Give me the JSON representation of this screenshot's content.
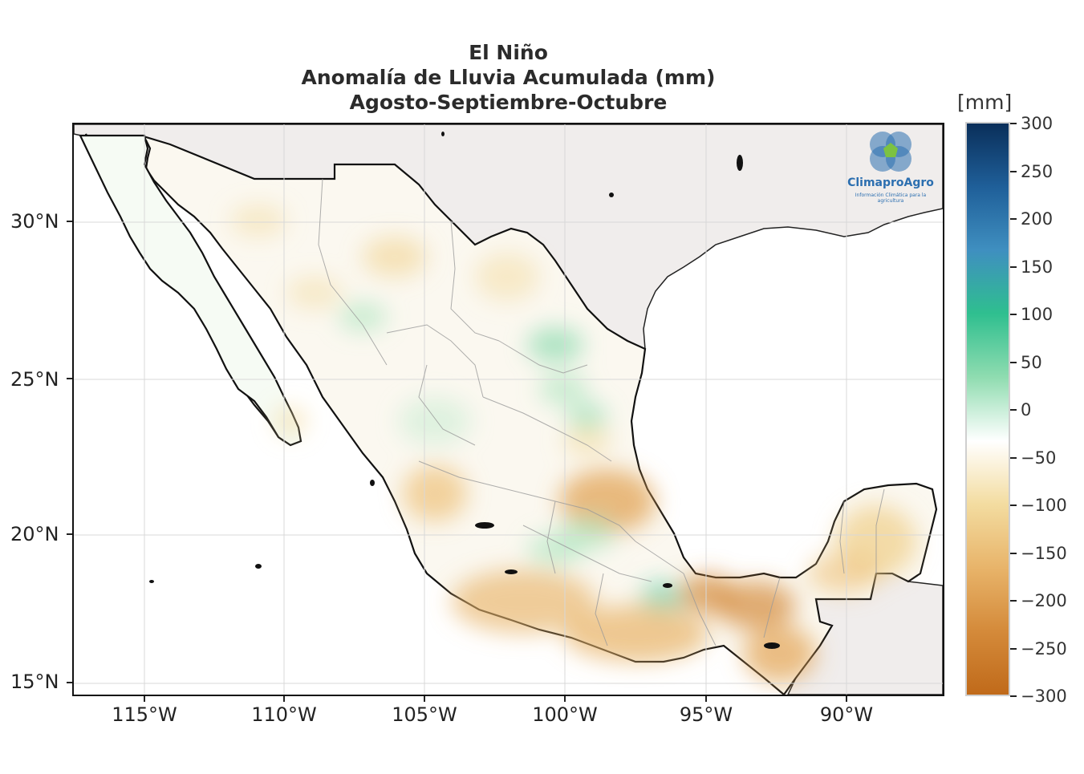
{
  "title": {
    "line1": "El Niño",
    "line2": "Anomalía de Lluvia Acumulada (mm)",
    "line3": "Agosto-Septiembre-Octubre"
  },
  "axes": {
    "lat_labels": [
      "30°N",
      "25°N",
      "20°N",
      "15°N"
    ],
    "lon_labels": [
      "115°W",
      "110°W",
      "105°W",
      "100°W",
      "95°W",
      "90°W"
    ]
  },
  "colorbar": {
    "unit": "[mm]",
    "labels": [
      "300",
      "250",
      "200",
      "150",
      "100",
      "50",
      "0",
      "−50",
      "−100",
      "−150",
      "−200",
      "−250",
      "−300"
    ],
    "range": [
      -300,
      300
    ],
    "colors_top_to_bottom": [
      "#0a2f5a",
      "#1f5f99",
      "#3f8fc0",
      "#2fbf8f",
      "#8fdcb0",
      "#ffffff",
      "#f3dca0",
      "#e8b46a",
      "#d48a3a",
      "#c06a1a"
    ]
  },
  "logo": {
    "name": "ClimaproAgro",
    "tagline": "Información Climática para la agricultura"
  },
  "colors": {
    "land_outside": "#f0edec",
    "ocean": "#ffffff",
    "border": "#111111"
  }
}
